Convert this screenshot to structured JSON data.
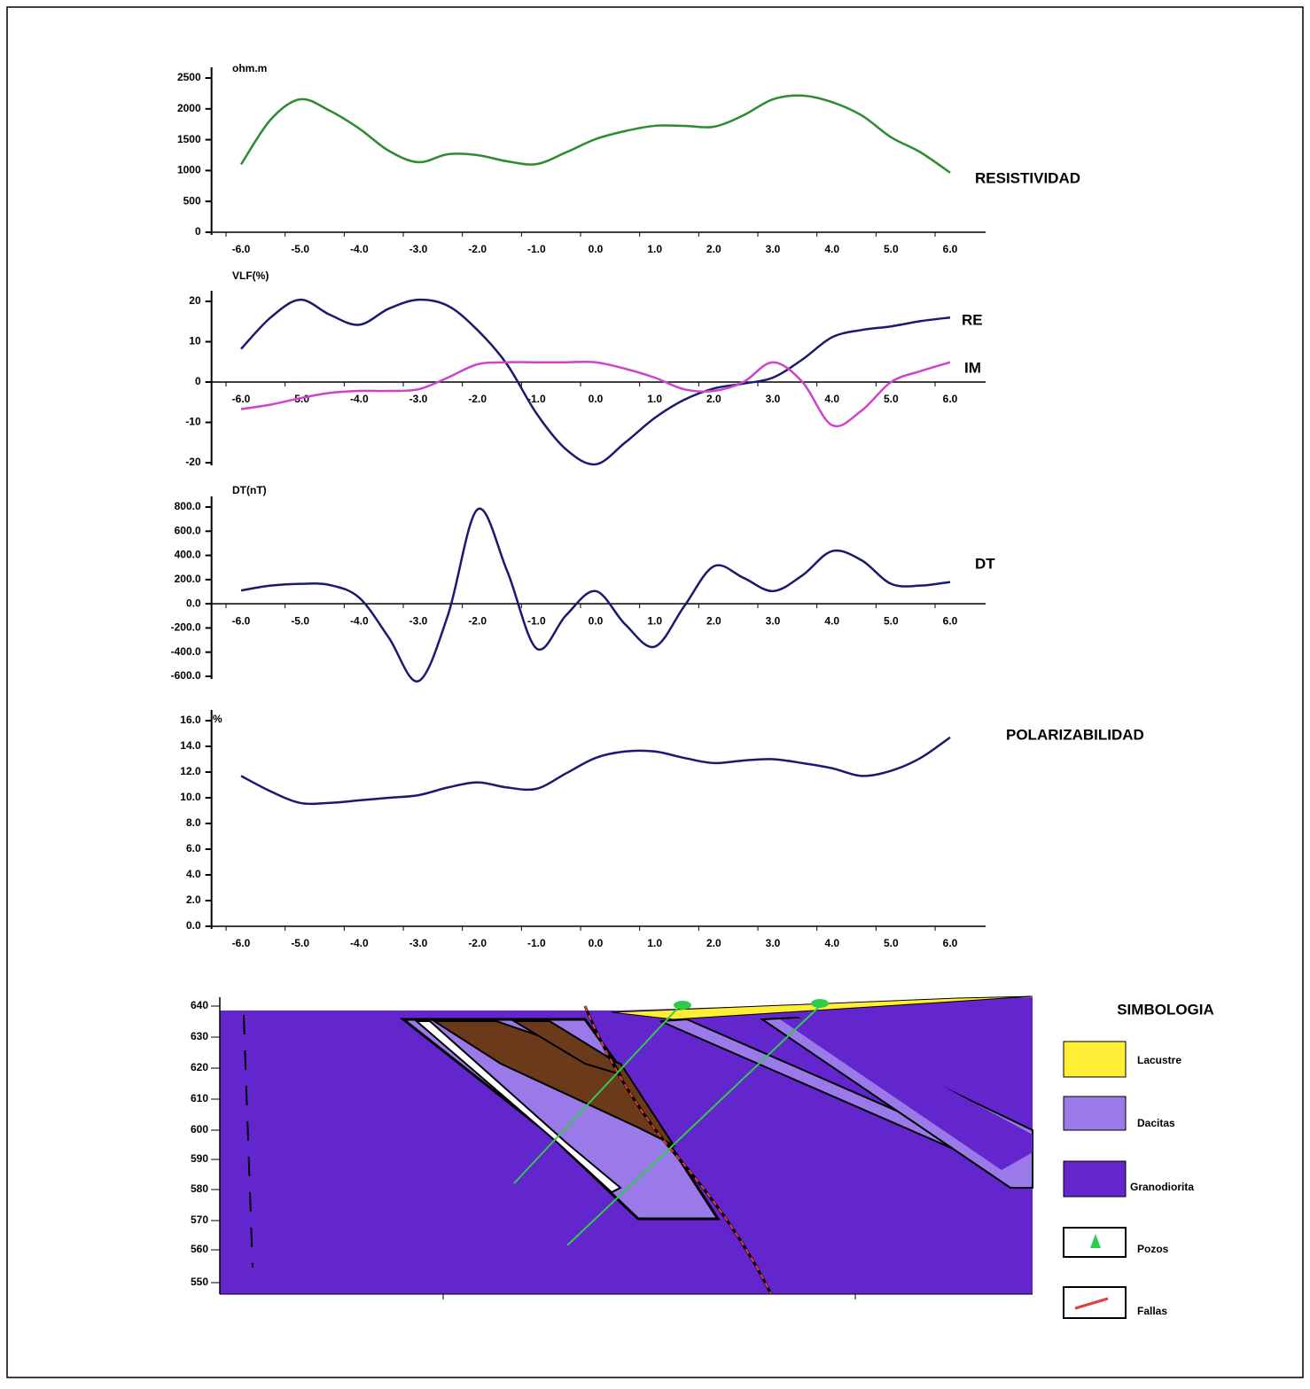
{
  "chart_data": [
    {
      "type": "line",
      "ylabel": "ohm.m",
      "x": [
        -6,
        -5.5,
        -5,
        -4.5,
        -4,
        -3.5,
        -3,
        -2.5,
        -2,
        -1.5,
        -1,
        -0.5,
        0,
        0.5,
        1,
        1.5,
        2,
        2.5,
        3,
        3.5,
        4,
        4.5,
        5,
        5.5,
        6
      ],
      "xlim": [
        -6.5,
        6.6
      ],
      "xticks": [
        {
          "value": -6,
          "label": "-6.0"
        },
        {
          "value": -5,
          "label": "-5.0"
        },
        {
          "value": -4,
          "label": "-4.0"
        },
        {
          "value": -3,
          "label": "-3.0"
        },
        {
          "value": -2,
          "label": "-2.0"
        },
        {
          "value": -1,
          "label": "-1.0"
        },
        {
          "value": 0,
          "label": "0.0"
        },
        {
          "value": 1,
          "label": "1.0"
        },
        {
          "value": 2,
          "label": "2.0"
        },
        {
          "value": 3,
          "label": "3.0"
        },
        {
          "value": 4,
          "label": "4.0"
        },
        {
          "value": 5,
          "label": "5.0"
        },
        {
          "value": 6,
          "label": "6.0"
        }
      ],
      "ylim": [
        0,
        2500
      ],
      "yticks": [
        0,
        500,
        1000,
        1500,
        2000,
        2500
      ],
      "grid": false,
      "series": [
        {
          "name": "RESISTIVIDAD",
          "color": "#2e8b2e",
          "values": [
            1100,
            1825,
            2155,
            1970,
            1680,
            1320,
            1135,
            1265,
            1250,
            1150,
            1105,
            1295,
            1510,
            1640,
            1725,
            1725,
            1710,
            1895,
            2155,
            2215,
            2110,
            1895,
            1540,
            1295,
            965
          ]
        }
      ]
    },
    {
      "type": "line",
      "ylabel": "VLF(%)",
      "x": [
        -6,
        -5.5,
        -5,
        -4.5,
        -4,
        -3.5,
        -3,
        -2.5,
        -2,
        -1.5,
        -1,
        -0.5,
        0,
        0.5,
        1,
        1.5,
        2,
        2.5,
        3,
        3.5,
        4,
        4.5,
        5,
        5.5,
        6
      ],
      "xlim": [
        -6.5,
        6.6
      ],
      "xticks": [
        {
          "value": -6,
          "label": "-6.0"
        },
        {
          "value": -5,
          "label": "-5.0"
        },
        {
          "value": -4,
          "label": "-4.0"
        },
        {
          "value": -3,
          "label": "-3.0"
        },
        {
          "value": -2,
          "label": "-2.0"
        },
        {
          "value": -1,
          "label": "-1.0"
        },
        {
          "value": 0,
          "label": "0.0"
        },
        {
          "value": 1,
          "label": "1.0"
        },
        {
          "value": 2,
          "label": "2.0"
        },
        {
          "value": 3,
          "label": "3.0"
        },
        {
          "value": 4,
          "label": "4.0"
        },
        {
          "value": 5,
          "label": "5.0"
        },
        {
          "value": 6,
          "label": "6.0"
        }
      ],
      "ylim": [
        -20,
        20
      ],
      "yticks": [
        -20,
        -10,
        0,
        10,
        20
      ],
      "grid": false,
      "series": [
        {
          "name": "RE",
          "color": "#1a1a6e",
          "values": [
            8.2,
            16,
            20.4,
            16.7,
            14.2,
            18.2,
            20.4,
            18.9,
            12.9,
            4.4,
            -7.8,
            -16.7,
            -20.4,
            -15,
            -8.9,
            -4.4,
            -1.6,
            -0.4,
            1.1,
            5.6,
            11.1,
            12.9,
            13.8,
            15.1,
            16
          ]
        },
        {
          "name": "IM",
          "color": "#cc44cc",
          "values": [
            -6.7,
            -5.6,
            -4,
            -2.7,
            -2.2,
            -2.2,
            -1.8,
            1.1,
            4.4,
            4.9,
            4.9,
            4.9,
            4.9,
            3.3,
            1.1,
            -1.8,
            -2.2,
            0,
            4.9,
            0,
            -10.7,
            -7.1,
            0,
            2.7,
            4.9
          ]
        }
      ]
    },
    {
      "type": "line",
      "ylabel": "DT(nT)",
      "x": [
        -6,
        -5.5,
        -5,
        -4.5,
        -4,
        -3.5,
        -3,
        -2.5,
        -2,
        -1.5,
        -1,
        -0.5,
        0,
        0.5,
        1,
        1.5,
        2,
        2.5,
        3,
        3.5,
        4,
        4.5,
        5,
        5.5,
        6
      ],
      "xlim": [
        -6.5,
        6.6
      ],
      "xticks": [
        {
          "value": -6,
          "label": "-6.0"
        },
        {
          "value": -5,
          "label": "-5.0"
        },
        {
          "value": -4,
          "label": "-4.0"
        },
        {
          "value": -3,
          "label": "-3.0"
        },
        {
          "value": -2,
          "label": "-2.0"
        },
        {
          "value": -1,
          "label": "-1.0"
        },
        {
          "value": 0,
          "label": "0.0"
        },
        {
          "value": 1,
          "label": "1.0"
        },
        {
          "value": 2,
          "label": "2.0"
        },
        {
          "value": 3,
          "label": "3.0"
        },
        {
          "value": 4,
          "label": "4.0"
        },
        {
          "value": 5,
          "label": "5.0"
        },
        {
          "value": 6,
          "label": "6.0"
        }
      ],
      "ylim": [
        -600,
        800
      ],
      "yticks": [
        {
          "value": -600,
          "label": "-600.0"
        },
        {
          "value": -400,
          "label": "-400.0"
        },
        {
          "value": -200,
          "label": "-200.0"
        },
        {
          "value": 0,
          "label": "0.0"
        },
        {
          "value": 200,
          "label": "200.0"
        },
        {
          "value": 400,
          "label": "400.0"
        },
        {
          "value": 600,
          "label": "600.0"
        },
        {
          "value": 800,
          "label": "800.0"
        }
      ],
      "grid": false,
      "series": [
        {
          "name": "DT",
          "color": "#1a1a6e",
          "values": [
            110,
            150,
            165,
            155,
            50,
            -280,
            -640,
            -95,
            780,
            275,
            -370,
            -95,
            105,
            -170,
            -355,
            -20,
            310,
            215,
            105,
            235,
            435,
            360,
            165,
            150,
            180
          ]
        }
      ]
    },
    {
      "type": "line",
      "ylabel": "%",
      "x": [
        -6,
        -5.5,
        -5,
        -4.5,
        -4,
        -3.5,
        -3,
        -2.5,
        -2,
        -1.5,
        -1,
        -0.5,
        0,
        0.5,
        1,
        1.5,
        2,
        2.5,
        3,
        3.5,
        4,
        4.5,
        5,
        5.5,
        6
      ],
      "xlim": [
        -6.5,
        6.6
      ],
      "xticks": [
        {
          "value": -6,
          "label": "-6.0"
        },
        {
          "value": -5,
          "label": "-5.0"
        },
        {
          "value": -4,
          "label": "-4.0"
        },
        {
          "value": -3,
          "label": "-3.0"
        },
        {
          "value": -2,
          "label": "-2.0"
        },
        {
          "value": -1,
          "label": "-1.0"
        },
        {
          "value": 0,
          "label": "0.0"
        },
        {
          "value": 1,
          "label": "1.0"
        },
        {
          "value": 2,
          "label": "2.0"
        },
        {
          "value": 3,
          "label": "3.0"
        },
        {
          "value": 4,
          "label": "4.0"
        },
        {
          "value": 5,
          "label": "5.0"
        },
        {
          "value": 6,
          "label": "6.0"
        }
      ],
      "ylim": [
        0,
        16
      ],
      "yticks": [
        {
          "value": 0,
          "label": "0.0"
        },
        {
          "value": 2,
          "label": "2.0"
        },
        {
          "value": 4,
          "label": "4.0"
        },
        {
          "value": 6,
          "label": "6.0"
        },
        {
          "value": 8,
          "label": "8.0"
        },
        {
          "value": 10,
          "label": "10.0"
        },
        {
          "value": 12,
          "label": "12.0"
        },
        {
          "value": 14,
          "label": "14.0"
        },
        {
          "value": 16,
          "label": "16.0"
        }
      ],
      "grid": false,
      "series": [
        {
          "name": "POLARIZABILIDAD",
          "color": "#1a1a6e",
          "values": [
            11.7,
            10.5,
            9.6,
            9.6,
            9.8,
            10,
            10.2,
            10.8,
            11.2,
            10.8,
            10.7,
            11.9,
            13.1,
            13.6,
            13.6,
            13.1,
            12.7,
            12.9,
            13,
            12.7,
            12.3,
            11.7,
            12.1,
            13.1,
            14.7
          ]
        }
      ]
    }
  ],
  "section": {
    "yticks": [
      "640",
      "630",
      "620",
      "610",
      "600",
      "590",
      "580",
      "570",
      "560",
      "550"
    ],
    "legend_title": "SIMBOLOGIA",
    "legend": [
      "Lacustre",
      "Dacitas",
      "Granodiorita",
      "Pozos",
      "Fallas"
    ]
  }
}
